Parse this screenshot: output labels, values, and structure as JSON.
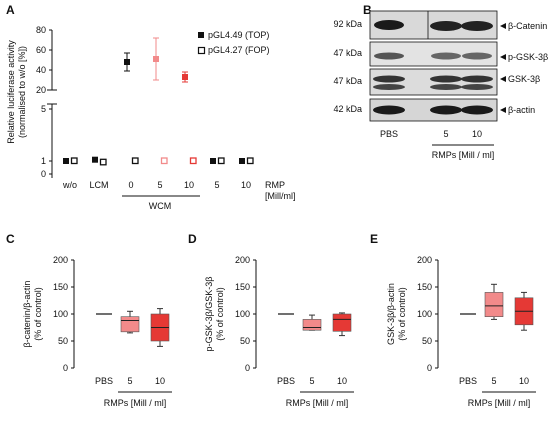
{
  "panels": {
    "A": {
      "letter": "A",
      "ylabel_line1": "Relative luciferase activity",
      "ylabel_line2": "(normalised to w/o [%])",
      "legend": [
        {
          "label": "pGL4.49 (TOP)",
          "filled": true
        },
        {
          "label": "pGL4.27 (FOP)",
          "filled": false
        }
      ],
      "xlabels": {
        "wo": "w/o",
        "lcm": "LCM",
        "wcm0": "0",
        "wcm5": "5",
        "wcm10": "10",
        "rmp5": "5",
        "rmp10": "10",
        "wcm": "WCM",
        "rmp_line1": "RMP",
        "rmp_line2": "[Mill/ml]"
      },
      "yticks_upper": [
        "80",
        "60",
        "40",
        "20"
      ],
      "yticks_lower": [
        "5",
        "1",
        "0"
      ]
    },
    "B": {
      "letter": "B",
      "bands": [
        {
          "kda": "92 kDa",
          "label": "β-Catenin"
        },
        {
          "kda": "47 kDa",
          "label": "p-GSK-3β"
        },
        {
          "kda": "47 kDa",
          "label": "GSK-3β"
        },
        {
          "kda": "42 kDa",
          "label": "β-actin"
        }
      ],
      "lanes": [
        "PBS",
        "5",
        "10"
      ],
      "xlabel": "RMPs [Mill / ml]"
    },
    "C": {
      "letter": "C",
      "ylabel_line1": "β-catenin/β-actin",
      "ylabel_line2": "(% of control)",
      "lanes": [
        "PBS",
        "5",
        "10"
      ],
      "xlabel": "RMPs [Mill / ml]",
      "yticks": [
        "200",
        "150",
        "100",
        "50",
        "0"
      ]
    },
    "D": {
      "letter": "D",
      "ylabel_line1": "p-GSK-3β/GSK-3β",
      "ylabel_line2": "(% of control)",
      "lanes": [
        "PBS",
        "5",
        "10"
      ],
      "xlabel": "RMPs [Mill / ml]",
      "yticks": [
        "200",
        "150",
        "100",
        "50",
        "0"
      ]
    },
    "E": {
      "letter": "E",
      "ylabel_line1": "GSK-3β/β-actin",
      "ylabel_line2": "(% of control)",
      "lanes": [
        "PBS",
        "5",
        "10"
      ],
      "xlabel": "RMPs [Mill / ml]",
      "yticks": [
        "200",
        "150",
        "100",
        "50",
        "0"
      ]
    }
  },
  "colors": {
    "light_red": "#f28a8a",
    "red": "#e53935",
    "black": "#111111"
  },
  "chart_data": [
    {
      "type": "scatter",
      "panel": "A",
      "categories": [
        "w/o",
        "LCM",
        "WCM 0",
        "WCM 5",
        "WCM 10",
        "RMP 5",
        "RMP 10"
      ],
      "series": [
        {
          "name": "pGL4.49 (TOP)",
          "values": [
            1.0,
            1.1,
            48,
            51,
            33,
            1.0,
            1.0
          ],
          "errors": [
            0,
            0.1,
            9,
            21,
            5,
            0,
            0
          ]
        },
        {
          "name": "pGL4.27 (FOP)",
          "values": [
            1.0,
            0.9,
            1.0,
            1.0,
            1.0,
            1.0,
            1.0
          ],
          "errors": [
            0,
            0,
            0,
            0,
            0,
            0,
            0
          ]
        }
      ],
      "ylim_upper": [
        20,
        80
      ],
      "ylim_lower": [
        0,
        5
      ]
    },
    {
      "type": "box",
      "panel": "C",
      "categories": [
        "PBS",
        "5",
        "10"
      ],
      "ylim": [
        0,
        200
      ],
      "boxes": [
        {
          "median": 100,
          "q1": 100,
          "q3": 100,
          "min": 100,
          "max": 100
        },
        {
          "median": 88,
          "q1": 67,
          "q3": 95,
          "min": 65,
          "max": 105
        },
        {
          "median": 75,
          "q1": 50,
          "q3": 100,
          "min": 40,
          "max": 110
        }
      ]
    },
    {
      "type": "box",
      "panel": "D",
      "categories": [
        "PBS",
        "5",
        "10"
      ],
      "ylim": [
        0,
        200
      ],
      "boxes": [
        {
          "median": 100,
          "q1": 100,
          "q3": 100,
          "min": 100,
          "max": 100
        },
        {
          "median": 75,
          "q1": 70,
          "q3": 90,
          "min": 70,
          "max": 98
        },
        {
          "median": 90,
          "q1": 68,
          "q3": 100,
          "min": 60,
          "max": 102
        }
      ]
    },
    {
      "type": "box",
      "panel": "E",
      "categories": [
        "PBS",
        "5",
        "10"
      ],
      "ylim": [
        0,
        200
      ],
      "boxes": [
        {
          "median": 100,
          "q1": 100,
          "q3": 100,
          "min": 100,
          "max": 100
        },
        {
          "median": 115,
          "q1": 95,
          "q3": 140,
          "min": 90,
          "max": 155
        },
        {
          "median": 105,
          "q1": 80,
          "q3": 130,
          "min": 70,
          "max": 140
        }
      ]
    }
  ]
}
